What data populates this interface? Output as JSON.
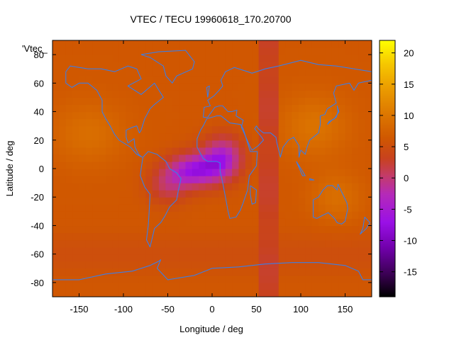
{
  "chart_data": {
    "type": "heatmap",
    "title": "VTEC / TECU 19960618_170.20700",
    "xlabel": "Longitude / deg",
    "ylabel": "Latitude / deg",
    "key_label": "'Vtec_",
    "xlim": [
      -180,
      180
    ],
    "ylim": [
      -90,
      90
    ],
    "xticks": [
      -150,
      -100,
      -50,
      0,
      50,
      100,
      150
    ],
    "yticks": [
      80,
      60,
      40,
      20,
      0,
      -20,
      -40,
      -60,
      -80
    ],
    "colorbar": {
      "min": -19,
      "max": 22,
      "ticks": [
        20,
        15,
        10,
        5,
        0,
        -5,
        -10,
        -15
      ],
      "palette": [
        "#000000",
        "#3c0055",
        "#7000aa",
        "#9a10e6",
        "#b52ab8",
        "#c33b6b",
        "#c8421e",
        "#d05800",
        "#de7a00",
        "#ec9f00",
        "#f6c800",
        "#ffff00"
      ]
    },
    "grid": false,
    "coastline_color": "#3c7de6",
    "field": {
      "background_tecu": 7,
      "dark_band_tecu": 3.2,
      "dark_band_lon": [
        52,
        78
      ],
      "regions": [
        {
          "name": "equatorial-atlantic-minimum",
          "lon": -20,
          "lat": 0,
          "min_tecu": -7
        },
        {
          "name": "central-africa-minimum",
          "lon": 10,
          "lat": 8,
          "min_tecu": -6
        },
        {
          "name": "north-atlantic-high",
          "lon": -140,
          "lat": 25,
          "max_tecu": 12
        },
        {
          "name": "asia-high",
          "lon": 110,
          "lat": 30,
          "max_tecu": 12
        },
        {
          "name": "australia-high",
          "lon": 140,
          "lat": -20,
          "max_tecu": 11
        }
      ]
    }
  }
}
